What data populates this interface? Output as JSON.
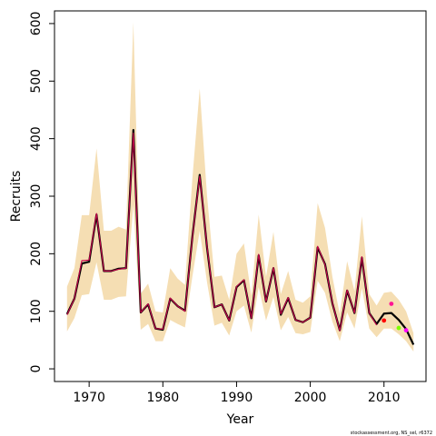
{
  "chart_data": {
    "type": "line",
    "xlabel": "Year",
    "ylabel": "Recruits",
    "xlim": [
      1965.3,
      2015.7
    ],
    "ylim": [
      -22,
      622
    ],
    "x_ticks": [
      1970,
      1980,
      1990,
      2000,
      2010
    ],
    "y_ticks": [
      0,
      100,
      200,
      300,
      400,
      500,
      600
    ],
    "credit": "stockassessment.org, NS_sel, r6372",
    "colors": {
      "band": "#f5deb3",
      "main_line": "#000000",
      "overlay_line": "#c8004a"
    },
    "years": [
      1967,
      1968,
      1969,
      1970,
      1971,
      1972,
      1973,
      1974,
      1975,
      1976,
      1977,
      1978,
      1979,
      1980,
      1981,
      1982,
      1983,
      1984,
      1985,
      1986,
      1987,
      1988,
      1989,
      1990,
      1991,
      1992,
      1993,
      1994,
      1995,
      1996,
      1997,
      1998,
      1999,
      2000,
      2001,
      2002,
      2003,
      2004,
      2005,
      2006,
      2007,
      2008,
      2009,
      2010,
      2011,
      2012,
      2013,
      2014
    ],
    "series": [
      {
        "values": [
          95,
          122,
          183,
          186,
          268,
          170,
          170,
          174,
          175,
          415,
          98,
          112,
          70,
          68,
          122,
          109,
          101,
          229,
          337,
          210,
          107,
          112,
          84,
          142,
          154,
          88,
          197,
          117,
          175,
          94,
          123,
          85,
          81,
          89,
          211,
          182,
          114,
          67,
          136,
          97,
          193,
          97,
          78,
          96,
          97,
          85,
          69,
          42
        ]
      }
    ],
    "band_upper": [
      143,
      175,
      267,
      267,
      383,
      240,
      240,
      247,
      242,
      602,
      131,
      148,
      100,
      98,
      175,
      157,
      146,
      330,
      487,
      300,
      160,
      162,
      120,
      200,
      218,
      127,
      268,
      160,
      238,
      130,
      170,
      120,
      115,
      126,
      288,
      245,
      160,
      95,
      187,
      135,
      265,
      130,
      110,
      132,
      134,
      120,
      100,
      62
    ],
    "band_lower": [
      65,
      88,
      128,
      130,
      185,
      120,
      120,
      125,
      126,
      285,
      68,
      78,
      48,
      48,
      85,
      78,
      72,
      160,
      240,
      150,
      75,
      80,
      58,
      100,
      110,
      63,
      142,
      84,
      125,
      67,
      90,
      62,
      60,
      64,
      153,
      132,
      82,
      48,
      98,
      70,
      140,
      70,
      55,
      70,
      70,
      60,
      48,
      30
    ],
    "overlay_series": {
      "x": [
        1967,
        1968,
        1969,
        1970,
        1971,
        1972,
        1973,
        1974,
        1975,
        1976,
        1977,
        1978,
        1979,
        1980,
        1981,
        1982,
        1983,
        1984,
        1985,
        1986,
        1987,
        1988,
        1989,
        1990,
        1991,
        1992,
        1993,
        1994,
        1995,
        1996,
        1997,
        1998,
        1999,
        2000,
        2001,
        2002,
        2003,
        2004,
        2005,
        2006,
        2007,
        2008,
        2009
      ],
      "values": [
        94,
        122,
        188,
        189,
        270,
        170,
        170,
        173,
        175,
        410,
        98,
        113,
        70,
        69,
        123,
        109,
        100,
        228,
        335,
        212,
        107,
        112,
        84,
        143,
        155,
        88,
        199,
        117,
        176,
        95,
        124,
        85,
        81,
        89,
        213,
        181,
        115,
        66,
        137,
        97,
        195,
        97,
        76
      ]
    },
    "points": [
      {
        "x": 2010,
        "y": 84,
        "color": "#ff0000"
      },
      {
        "x": 2011,
        "y": 113,
        "color": "#ff1493"
      },
      {
        "x": 2012,
        "y": 71,
        "color": "#7fff00"
      },
      {
        "x": 2013,
        "y": 67,
        "color": "#ff00ff"
      }
    ]
  }
}
